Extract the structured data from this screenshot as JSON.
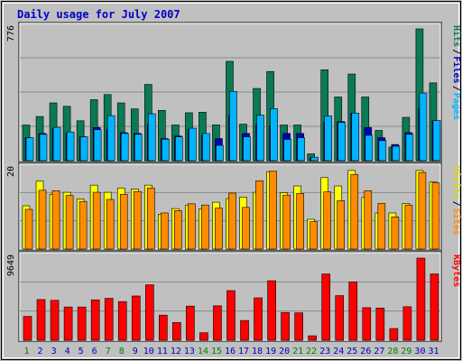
{
  "chart_data": [
    {
      "type": "bar",
      "panel": "top",
      "title": "Daily usage for July 2007",
      "categories": [
        "1",
        "2",
        "3",
        "4",
        "5",
        "6",
        "7",
        "8",
        "9",
        "10",
        "11",
        "12",
        "13",
        "14",
        "15",
        "16",
        "17",
        "18",
        "19",
        "20",
        "21",
        "22",
        "23",
        "24",
        "25",
        "26",
        "27",
        "28",
        "29",
        "30",
        "31"
      ],
      "weekend_categories": [
        "1",
        "7",
        "8",
        "14",
        "15",
        "21",
        "22",
        "28",
        "29"
      ],
      "ytick": "776",
      "ylim": [
        0,
        776
      ],
      "legend": [
        "Hits",
        "Files",
        "Pages"
      ],
      "series": [
        {
          "name": "Hits",
          "values": [
            210,
            260,
            340,
            320,
            235,
            359,
            389,
            340,
            305,
            449,
            296,
            210,
            282,
            285,
            211,
            585,
            215,
            425,
            525,
            210,
            210,
            40,
            535,
            375,
            510,
            375,
            178,
            80,
            255,
            776,
            458
          ]
        },
        {
          "name": "Files",
          "values": [
            135,
            160,
            190,
            160,
            140,
            195,
            185,
            165,
            160,
            215,
            130,
            145,
            185,
            150,
            130,
            265,
            160,
            210,
            205,
            160,
            160,
            20,
            230,
            230,
            280,
            195,
            135,
            95,
            165,
            310,
            235
          ]
        },
        {
          "name": "Pages",
          "values": [
            135,
            155,
            196,
            169,
            140,
            183,
            265,
            160,
            155,
            276,
            126,
            140,
            191,
            160,
            90,
            408,
            140,
            268,
            306,
            125,
            135,
            20,
            263,
            225,
            280,
            149,
            118,
            85,
            155,
            398,
            236
          ]
        }
      ]
    },
    {
      "type": "bar",
      "panel": "middle",
      "ytick": "20",
      "ylim": [
        0,
        20
      ],
      "legend": [
        "Visits",
        "Sites"
      ],
      "series": [
        {
          "name": "Visits",
          "values": [
            10.9,
            17.1,
            13.8,
            14.3,
            12.6,
            16.1,
            14.3,
            15.4,
            15.1,
            16.1,
            8.8,
            10.2,
            11.1,
            10.1,
            11.8,
            12.7,
            13.1,
            14.3,
            19.5,
            14.2,
            15.9,
            7.5,
            18.0,
            15.9,
            19.8,
            13.0,
            9.1,
            9.1,
            11.5,
            19.8,
            16.9
          ]
        },
        {
          "name": "Sites",
          "values": [
            10.0,
            14.8,
            14.7,
            13.5,
            12.0,
            14.3,
            12.5,
            13.8,
            14.5,
            15.4,
            9.1,
            9.7,
            11.4,
            11.1,
            10.3,
            14.1,
            10.5,
            17.2,
            19.6,
            13.6,
            14.0,
            6.9,
            14.4,
            12.2,
            18.8,
            14.7,
            11.5,
            8.1,
            11.1,
            19.3,
            16.7
          ]
        }
      ]
    },
    {
      "type": "bar",
      "panel": "bottom",
      "ytick": "9649",
      "ylim": [
        0,
        9649
      ],
      "legend": [
        "KBytes"
      ],
      "series": [
        {
          "name": "KBytes",
          "values": [
            2800,
            4782,
            4689,
            3910,
            3906,
            4745,
            4922,
            4545,
            5198,
            6512,
            2951,
            2079,
            4012,
            880,
            4046,
            5833,
            2321,
            4982,
            6990,
            3266,
            3221,
            522,
            7786,
            5243,
            6860,
            3827,
            3777,
            1378,
            3941,
            9649,
            7786
          ]
        }
      ]
    }
  ],
  "colors": {
    "background": "#c0c0c0",
    "frame": "#5a5a5a",
    "title": "#0000cc",
    "hits": "#0a7a55",
    "files": "#0000c0",
    "pages": "#00b4ff",
    "visits": "#ffff00",
    "sites": "#ff8c00",
    "kbytes": "#ff0000",
    "weekday_label": "#0000c0",
    "weekend_label": "#008000"
  }
}
